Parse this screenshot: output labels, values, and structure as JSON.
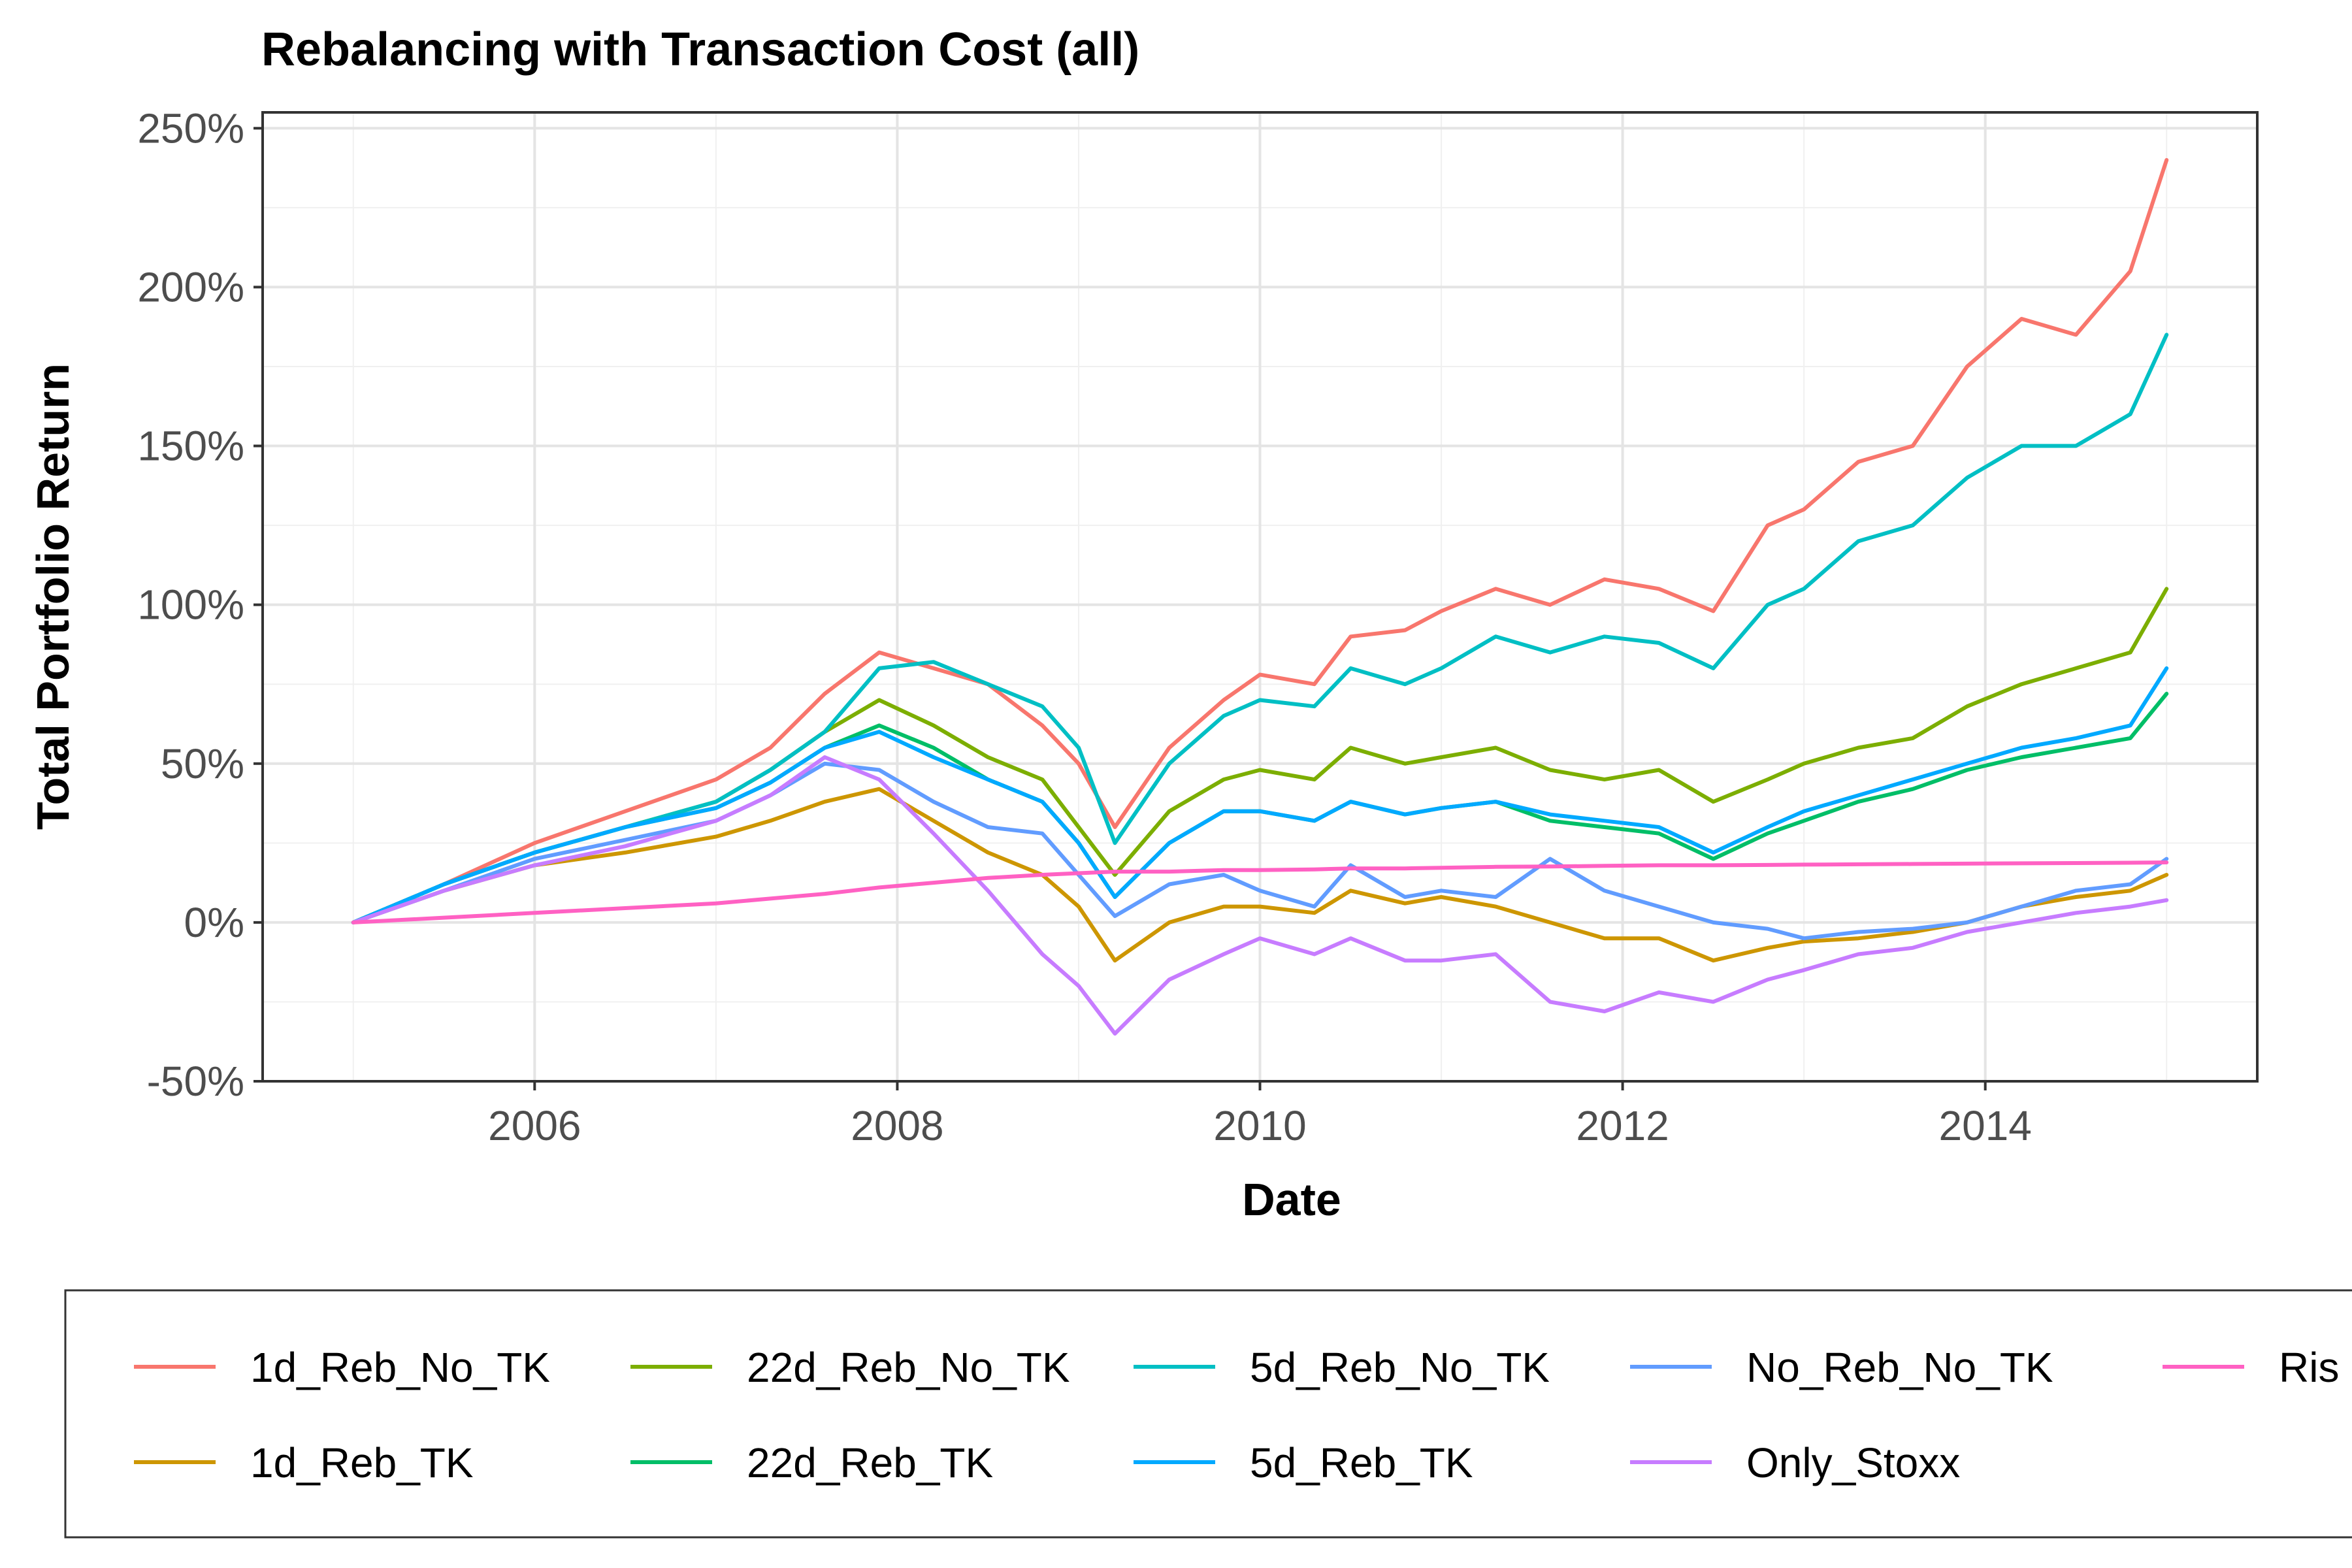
{
  "chart_data": {
    "type": "line",
    "title": "Rebalancing with Transaction Cost (all)",
    "xlabel": "Date",
    "ylabel": "Total Portfolio Return",
    "x_ticks": [
      "2006",
      "2008",
      "2010",
      "2012",
      "2014"
    ],
    "x_tick_values": [
      2006,
      2008,
      2010,
      2012,
      2014
    ],
    "y_ticks": [
      "-50%",
      "0%",
      "50%",
      "100%",
      "150%",
      "200%",
      "250%"
    ],
    "y_tick_values": [
      -50,
      0,
      50,
      100,
      150,
      200,
      250
    ],
    "xlim": [
      2004.5,
      2015.5
    ],
    "ylim": [
      -50,
      255
    ],
    "grid": true,
    "legend_position": "bottom",
    "x": [
      2005.0,
      2005.5,
      2006.0,
      2006.5,
      2007.0,
      2007.3,
      2007.6,
      2007.9,
      2008.2,
      2008.5,
      2008.8,
      2009.0,
      2009.2,
      2009.5,
      2009.8,
      2010.0,
      2010.3,
      2010.5,
      2010.8,
      2011.0,
      2011.3,
      2011.6,
      2011.9,
      2012.2,
      2012.5,
      2012.8,
      2013.0,
      2013.3,
      2013.6,
      2013.9,
      2014.2,
      2014.5,
      2014.8,
      2015.0
    ],
    "series": [
      {
        "name": "1d_Reb_No_TK",
        "color": "#F8766D",
        "values": [
          0,
          12,
          25,
          35,
          45,
          55,
          72,
          85,
          80,
          75,
          62,
          50,
          30,
          55,
          70,
          78,
          75,
          90,
          92,
          98,
          105,
          100,
          108,
          105,
          98,
          125,
          130,
          145,
          150,
          175,
          190,
          185,
          205,
          240
        ]
      },
      {
        "name": "1d_Reb_TK",
        "color": "#CD9600",
        "values": [
          0,
          10,
          18,
          22,
          27,
          32,
          38,
          42,
          32,
          22,
          15,
          5,
          -12,
          0,
          5,
          5,
          3,
          10,
          6,
          8,
          5,
          0,
          -5,
          -5,
          -12,
          -8,
          -6,
          -5,
          -3,
          0,
          5,
          8,
          10,
          15
        ]
      },
      {
        "name": "22d_Reb_No_TK",
        "color": "#7CAE00",
        "values": [
          0,
          12,
          22,
          30,
          38,
          48,
          60,
          70,
          62,
          52,
          45,
          30,
          15,
          35,
          45,
          48,
          45,
          55,
          50,
          52,
          55,
          48,
          45,
          48,
          38,
          45,
          50,
          55,
          58,
          68,
          75,
          80,
          85,
          105
        ]
      },
      {
        "name": "22d_Reb_TK",
        "color": "#00BE67",
        "values": [
          0,
          12,
          22,
          30,
          36,
          44,
          55,
          62,
          55,
          45,
          38,
          25,
          8,
          25,
          35,
          35,
          32,
          38,
          34,
          36,
          38,
          32,
          30,
          28,
          20,
          28,
          32,
          38,
          42,
          48,
          52,
          55,
          58,
          72
        ]
      },
      {
        "name": "5d_Reb_No_TK",
        "color": "#00BFC4",
        "values": [
          0,
          12,
          22,
          30,
          38,
          48,
          60,
          80,
          82,
          75,
          68,
          55,
          25,
          50,
          65,
          70,
          68,
          80,
          75,
          80,
          90,
          85,
          90,
          88,
          80,
          100,
          105,
          120,
          125,
          140,
          150,
          150,
          160,
          185
        ]
      },
      {
        "name": "5d_Reb_TK",
        "color": "#00A9FF",
        "values": [
          0,
          12,
          22,
          30,
          36,
          44,
          55,
          60,
          52,
          45,
          38,
          25,
          8,
          25,
          35,
          35,
          32,
          38,
          34,
          36,
          38,
          34,
          32,
          30,
          22,
          30,
          35,
          40,
          45,
          50,
          55,
          58,
          62,
          80
        ]
      },
      {
        "name": "No_Reb_No_TK",
        "color": "#619CFF",
        "values": [
          0,
          10,
          20,
          26,
          32,
          40,
          50,
          48,
          38,
          30,
          28,
          15,
          2,
          12,
          15,
          10,
          5,
          18,
          8,
          10,
          8,
          20,
          10,
          5,
          0,
          -2,
          -5,
          -3,
          -2,
          0,
          5,
          10,
          12,
          20
        ]
      },
      {
        "name": "Only_Stoxx",
        "color": "#C77CFF",
        "values": [
          0,
          10,
          18,
          24,
          32,
          40,
          52,
          45,
          28,
          10,
          -10,
          -20,
          -35,
          -18,
          -10,
          -5,
          -10,
          -5,
          -12,
          -12,
          -10,
          -25,
          -28,
          -22,
          -25,
          -18,
          -15,
          -10,
          -8,
          -3,
          0,
          3,
          5,
          7
        ]
      },
      {
        "name": "Risikofrei",
        "color": "#FF61C3",
        "values": [
          0,
          1.5,
          3,
          4.5,
          6,
          7.5,
          9,
          11,
          12.5,
          14,
          15,
          15.5,
          16,
          16,
          16.5,
          16.5,
          16.7,
          17,
          17,
          17.2,
          17.5,
          17.6,
          17.8,
          18,
          18,
          18.1,
          18.2,
          18.3,
          18.4,
          18.5,
          18.6,
          18.7,
          18.8,
          18.9
        ]
      }
    ],
    "legend_labels": [
      "1d_Reb_No_TK",
      "22d_Reb_No_TK",
      "5d_Reb_No_TK",
      "No_Reb_No_TK",
      "Ris",
      "1d_Reb_TK",
      "22d_Reb_TK",
      "5d_Reb_TK",
      "Only_Stoxx"
    ]
  }
}
